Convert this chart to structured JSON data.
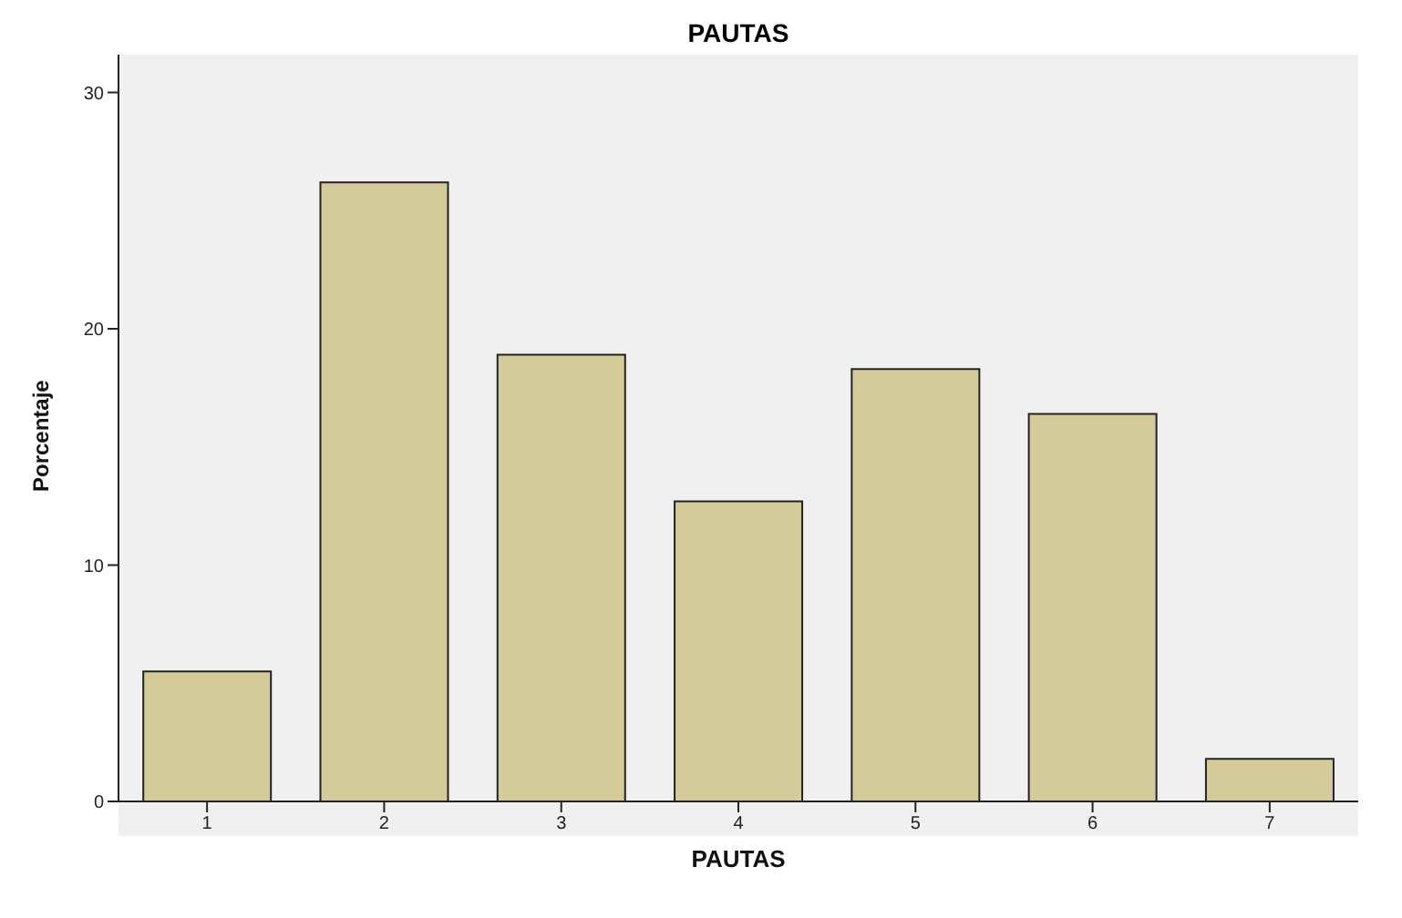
{
  "chart_data": {
    "type": "bar",
    "title": "PAUTAS",
    "xlabel": "PAUTAS",
    "ylabel": "Porcentaje",
    "categories": [
      "1",
      "2",
      "3",
      "4",
      "5",
      "6",
      "7"
    ],
    "values": [
      5.5,
      26.2,
      18.9,
      12.7,
      18.3,
      16.4,
      1.8
    ],
    "color": "#d3cc9a",
    "ylim": [
      0,
      31.6
    ],
    "yticks": [
      0,
      10,
      20,
      30
    ],
    "grid": false,
    "legend": false
  }
}
